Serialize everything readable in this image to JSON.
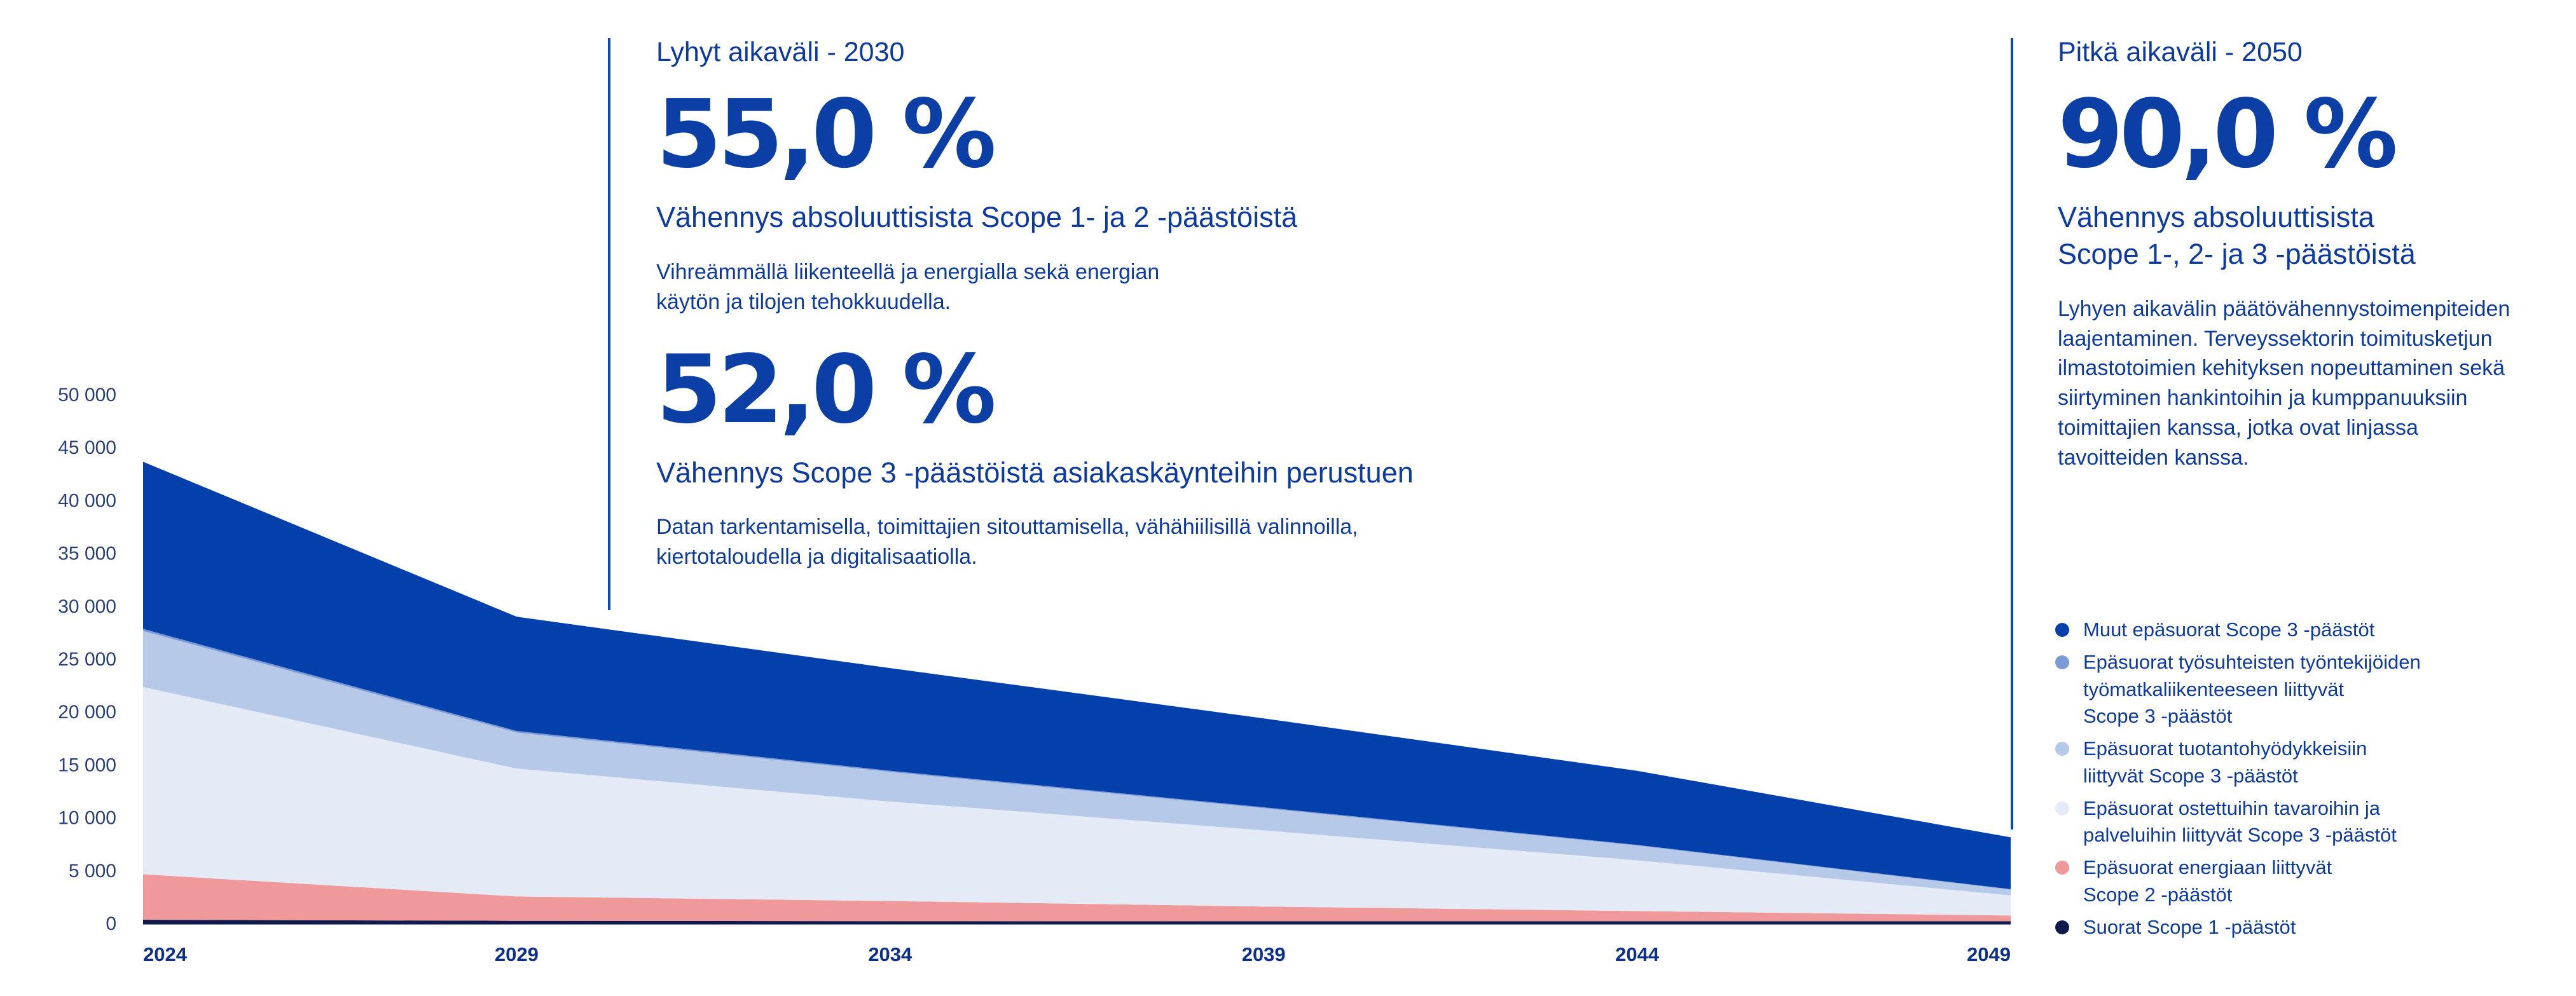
{
  "chart_data": {
    "type": "area",
    "stacked": true,
    "x": [
      2024,
      2029,
      2034,
      2039,
      2044,
      2049
    ],
    "xticks": [
      "2024",
      "2029",
      "2034",
      "2039",
      "2044",
      "2049"
    ],
    "yticks": [
      "0",
      "5 000",
      "10 000",
      "15 000",
      "20 000",
      "25 000",
      "30 000",
      "35 000",
      "40 000",
      "45 000",
      "50 000"
    ],
    "ylim": [
      0,
      50000
    ],
    "series": [
      {
        "name": "Suorat Scope 1 -päästöt",
        "color": "#111a4d",
        "values": [
          300,
          200,
          170,
          150,
          120,
          100
        ]
      },
      {
        "name": "Epäsuorat energiaan liittyvät\nScope 2 -päästöt",
        "color": "#f0999a",
        "values": [
          4300,
          2300,
          1900,
          1400,
          1000,
          600
        ]
      },
      {
        "name": "Epäsuorat ostettuihin tavaroihin ja\npalveluihin liittyvät Scope 3 -päästöt",
        "color": "#e4eaf6",
        "values": [
          17700,
          12100,
          9400,
          7200,
          4800,
          1900
        ]
      },
      {
        "name": "Epäsuorat tuotantohyödykkeisiin\nliittyvät Scope 3 -päästöt",
        "color": "#b6c9e8",
        "values": [
          5300,
          3400,
          2800,
          2100,
          1400,
          550
        ]
      },
      {
        "name": "Epäsuorat työsuhteisten työntekijöiden\ntyömatkaliikenteeseen liittyvät\nScope 3 -päästöt",
        "color": "#7c9ad6",
        "values": [
          200,
          150,
          120,
          90,
          60,
          40
        ]
      },
      {
        "name": "Muut epäsuorat Scope 3 -päästöt",
        "color": "#0340ac",
        "values": [
          15800,
          10800,
          9700,
          8400,
          7000,
          4900
        ]
      }
    ],
    "legend_placement": "right",
    "grid": false
  },
  "short_term": {
    "period": "Lyhyt aikaväli - 2030",
    "value_1": "55,0 %",
    "subtitle_1": "Vähennys absoluuttisista Scope 1- ja 2 -päästöistä",
    "desc_1": "Vihreämmällä liikenteellä ja energialla sekä energian\nkäytön ja tilojen tehokkuudella.",
    "value_2": "52,0 %",
    "subtitle_2": "Vähennys Scope 3 -päästöistä asiakaskäynteihin perustuen",
    "desc_2": "Datan tarkentamisella, toimittajien sitouttamisella, vähähiilisillä valinnoilla,\nkiertotaloudella ja digitalisaatiolla."
  },
  "long_term": {
    "period": "Pitkä aikaväli - 2050",
    "value": "90,0 %",
    "subtitle": "Vähennys absoluuttisista\nScope 1-, 2- ja 3 -päästöistä",
    "desc": "Lyhyen aikavälin päätövähennystoimenpiteiden\nlaajentaminen. Terveyssektorin toimitusketjun\nilmastotoimien kehityksen nopeuttaminen sekä\nsiirtyminen hankintoihin ja kumppanuuksiin\ntoimittajien kanssa, jotka ovat linjassa\ntavoitteiden kanssa."
  },
  "legend": [
    {
      "label": "Muut epäsuorat Scope 3 -päästöt",
      "color": "#0340ac"
    },
    {
      "label": "Epäsuorat työsuhteisten työntekijöiden\ntyömatkaliikenteeseen liittyvät\nScope 3 -päästöt",
      "color": "#7c9ad6"
    },
    {
      "label": "Epäsuorat tuotantohyödykkeisiin\nliittyvät Scope 3 -päästöt",
      "color": "#b6c9e8"
    },
    {
      "label": "Epäsuorat ostettuihin tavaroihin ja\npalveluihin liittyvät Scope 3 -päästöt",
      "color": "#e4eaf6"
    },
    {
      "label": "Epäsuorat energiaan liittyvät\nScope 2 -päästöt",
      "color": "#f0999a"
    },
    {
      "label": "Suorat Scope 1 -päästöt",
      "color": "#111a4d"
    }
  ]
}
